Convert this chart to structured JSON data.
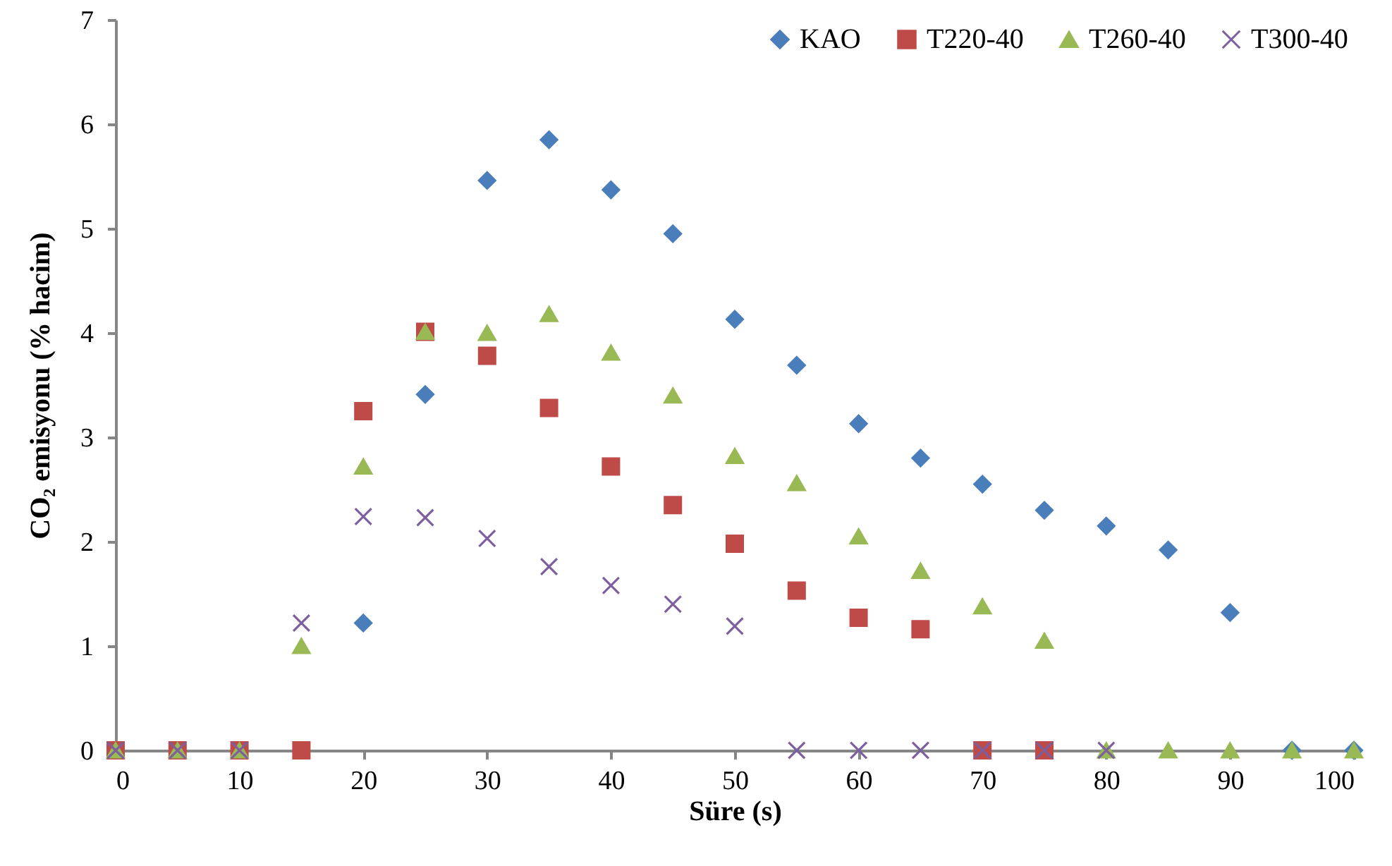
{
  "chart_data": {
    "type": "scatter",
    "xlabel": "Süre (s)",
    "ylabel": "CO₂ emisyonu (% hacim)",
    "xlim": [
      0,
      100
    ],
    "xticks": [
      0,
      10,
      20,
      30,
      40,
      50,
      60,
      70,
      80,
      90,
      100
    ],
    "ylim": [
      0,
      7
    ],
    "yticks": [
      0,
      1,
      2,
      3,
      4,
      5,
      6,
      7
    ],
    "grid": false,
    "legend": "top right",
    "series": [
      {
        "name": "KAO",
        "color": "#4a7ebb",
        "marker": "diamond",
        "x": [
          20,
          25,
          30,
          35,
          40,
          45,
          50,
          55,
          60,
          65,
          70,
          75,
          80,
          85,
          90,
          95,
          100
        ],
        "values": [
          1.22,
          3.41,
          5.46,
          5.85,
          5.37,
          4.95,
          4.13,
          3.69,
          3.13,
          2.8,
          2.55,
          2.3,
          2.15,
          1.92,
          1.32,
          0,
          0
        ]
      },
      {
        "name": "T220-40",
        "color": "#be4b48",
        "marker": "square",
        "x": [
          0,
          5,
          10,
          15,
          20,
          25,
          30,
          35,
          40,
          45,
          50,
          55,
          60,
          65,
          70,
          75
        ],
        "values": [
          0,
          0,
          0,
          0,
          3.25,
          4.01,
          3.78,
          3.28,
          2.72,
          2.35,
          1.98,
          1.53,
          1.27,
          1.16,
          0,
          0
        ]
      },
      {
        "name": "T260-40",
        "color": "#98b954",
        "marker": "triangle",
        "x": [
          0,
          5,
          10,
          15,
          20,
          25,
          30,
          35,
          40,
          45,
          50,
          55,
          60,
          65,
          70,
          75,
          80,
          85,
          90,
          95,
          100
        ],
        "values": [
          0,
          0,
          0,
          1.0,
          2.72,
          4.01,
          4.0,
          4.18,
          3.81,
          3.4,
          2.82,
          2.56,
          2.05,
          1.72,
          1.38,
          1.05,
          0,
          0,
          0,
          0,
          0
        ]
      },
      {
        "name": "T300-40",
        "color": "#7d5fa0",
        "marker": "cross",
        "x": [
          0,
          5,
          10,
          15,
          20,
          25,
          30,
          35,
          40,
          45,
          50,
          55,
          60,
          65,
          70,
          75,
          80
        ],
        "values": [
          0,
          0,
          0,
          1.22,
          2.24,
          2.23,
          2.03,
          1.76,
          1.58,
          1.4,
          1.19,
          0,
          0,
          0,
          0,
          0,
          0
        ]
      }
    ]
  }
}
